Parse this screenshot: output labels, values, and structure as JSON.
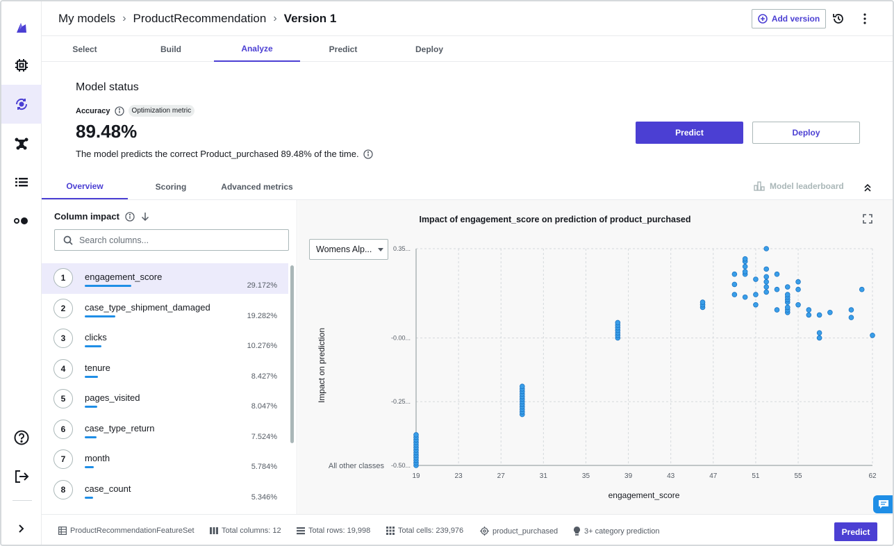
{
  "header": {
    "breadcrumbs": [
      "My models",
      "ProductRecommendation",
      "Version 1"
    ],
    "add_version_label": "Add version"
  },
  "top_tabs": [
    "Select",
    "Build",
    "Analyze",
    "Predict",
    "Deploy"
  ],
  "active_top_tab": "Analyze",
  "status": {
    "title": "Model status",
    "accuracy_label": "Accuracy",
    "optimization_badge": "Optimization metric",
    "accuracy_value": "89.48%",
    "description": "The model predicts the correct Product_purchased 89.48% of the time.",
    "predict_label": "Predict",
    "deploy_label": "Deploy"
  },
  "sub_tabs": [
    "Overview",
    "Scoring",
    "Advanced metrics"
  ],
  "active_sub_tab": "Overview",
  "leaderboard_label": "Model leaderboard",
  "column_impact": {
    "title": "Column impact",
    "search_placeholder": "Search columns...",
    "columns": [
      {
        "rank": "1",
        "name": "engagement_score",
        "pct": "29.172%",
        "value": 29.172
      },
      {
        "rank": "2",
        "name": "case_type_shipment_damaged",
        "pct": "19.282%",
        "value": 19.282
      },
      {
        "rank": "3",
        "name": "clicks",
        "pct": "10.276%",
        "value": 10.276
      },
      {
        "rank": "4",
        "name": "tenure",
        "pct": "8.427%",
        "value": 8.427
      },
      {
        "rank": "5",
        "name": "pages_visited",
        "pct": "8.047%",
        "value": 8.047
      },
      {
        "rank": "6",
        "name": "case_type_return",
        "pct": "7.524%",
        "value": 7.524
      },
      {
        "rank": "7",
        "name": "month",
        "pct": "5.784%",
        "value": 5.784
      },
      {
        "rank": "8",
        "name": "case_count",
        "pct": "5.346%",
        "value": 5.346
      }
    ]
  },
  "class_select": "Womens Alp...",
  "chart_data": {
    "type": "scatter",
    "title": "Impact of engagement_score on prediction of product_purchased",
    "xlabel": "engagement_score",
    "ylabel": "Impact on prediction",
    "xlim": [
      19,
      62
    ],
    "ylim": [
      -0.5,
      0.35
    ],
    "x_ticks": [
      19,
      23,
      27,
      31,
      35,
      39,
      43,
      47,
      51,
      55,
      62
    ],
    "y_ticks": [
      {
        "value": 0.35,
        "label": "0.35..."
      },
      {
        "value": 0.0,
        "label": "-0.00..."
      },
      {
        "value": -0.25,
        "label": "-0.25..."
      },
      {
        "value": -0.5,
        "label": "-0.50..."
      }
    ],
    "y_bottom_label": "All other classes",
    "grid": true,
    "series": [
      {
        "points": [
          [
            19,
            -0.5
          ],
          [
            19,
            -0.49
          ],
          [
            19,
            -0.48
          ],
          [
            19,
            -0.47
          ],
          [
            19,
            -0.46
          ],
          [
            19,
            -0.45
          ],
          [
            19,
            -0.44
          ],
          [
            19,
            -0.43
          ],
          [
            19,
            -0.42
          ],
          [
            19,
            -0.41
          ],
          [
            19,
            -0.4
          ],
          [
            19,
            -0.39
          ],
          [
            19,
            -0.38
          ],
          [
            29,
            -0.3
          ],
          [
            29,
            -0.29
          ],
          [
            29,
            -0.28
          ],
          [
            29,
            -0.27
          ],
          [
            29,
            -0.26
          ],
          [
            29,
            -0.25
          ],
          [
            29,
            -0.24
          ],
          [
            29,
            -0.23
          ],
          [
            29,
            -0.22
          ],
          [
            29,
            -0.21
          ],
          [
            29,
            -0.2
          ],
          [
            29,
            -0.19
          ],
          [
            38,
            0.0
          ],
          [
            38,
            0.01
          ],
          [
            38,
            0.02
          ],
          [
            38,
            0.03
          ],
          [
            38,
            0.04
          ],
          [
            38,
            0.05
          ],
          [
            38,
            0.06
          ],
          [
            46,
            0.12
          ],
          [
            46,
            0.13
          ],
          [
            46,
            0.14
          ],
          [
            49,
            0.17
          ],
          [
            49,
            0.21
          ],
          [
            49,
            0.25
          ],
          [
            50,
            0.16
          ],
          [
            50,
            0.25
          ],
          [
            50,
            0.26
          ],
          [
            50,
            0.28
          ],
          [
            50,
            0.3
          ],
          [
            50,
            0.31
          ],
          [
            51,
            0.13
          ],
          [
            51,
            0.17
          ],
          [
            51,
            0.23
          ],
          [
            52,
            0.18
          ],
          [
            52,
            0.2
          ],
          [
            52,
            0.22
          ],
          [
            52,
            0.24
          ],
          [
            52,
            0.27
          ],
          [
            52,
            0.35
          ],
          [
            53,
            0.11
          ],
          [
            53,
            0.19
          ],
          [
            53,
            0.25
          ],
          [
            54,
            0.1
          ],
          [
            54,
            0.11
          ],
          [
            54,
            0.12
          ],
          [
            54,
            0.14
          ],
          [
            54,
            0.15
          ],
          [
            54,
            0.16
          ],
          [
            54,
            0.17
          ],
          [
            54,
            0.2
          ],
          [
            55,
            0.13
          ],
          [
            55,
            0.19
          ],
          [
            55,
            0.22
          ],
          [
            56,
            0.09
          ],
          [
            56,
            0.11
          ],
          [
            57,
            0.02
          ],
          [
            57,
            0.0
          ],
          [
            57,
            0.09
          ],
          [
            58,
            0.1
          ],
          [
            60,
            0.08
          ],
          [
            60,
            0.11
          ],
          [
            61,
            0.19
          ],
          [
            62,
            0.01
          ]
        ]
      }
    ],
    "point_color": "#3a9ee8"
  },
  "footer": {
    "dataset": "ProductRecommendationFeatureSet",
    "total_columns": "Total columns: 12",
    "total_rows": "Total rows: 19,998",
    "total_cells": "Total cells: 239,976",
    "target": "product_purchased",
    "problem_type": "3+ category prediction",
    "predict_label": "Predict"
  },
  "colors": {
    "accent": "#4b3fd3",
    "bar": "#1f8ee6"
  }
}
